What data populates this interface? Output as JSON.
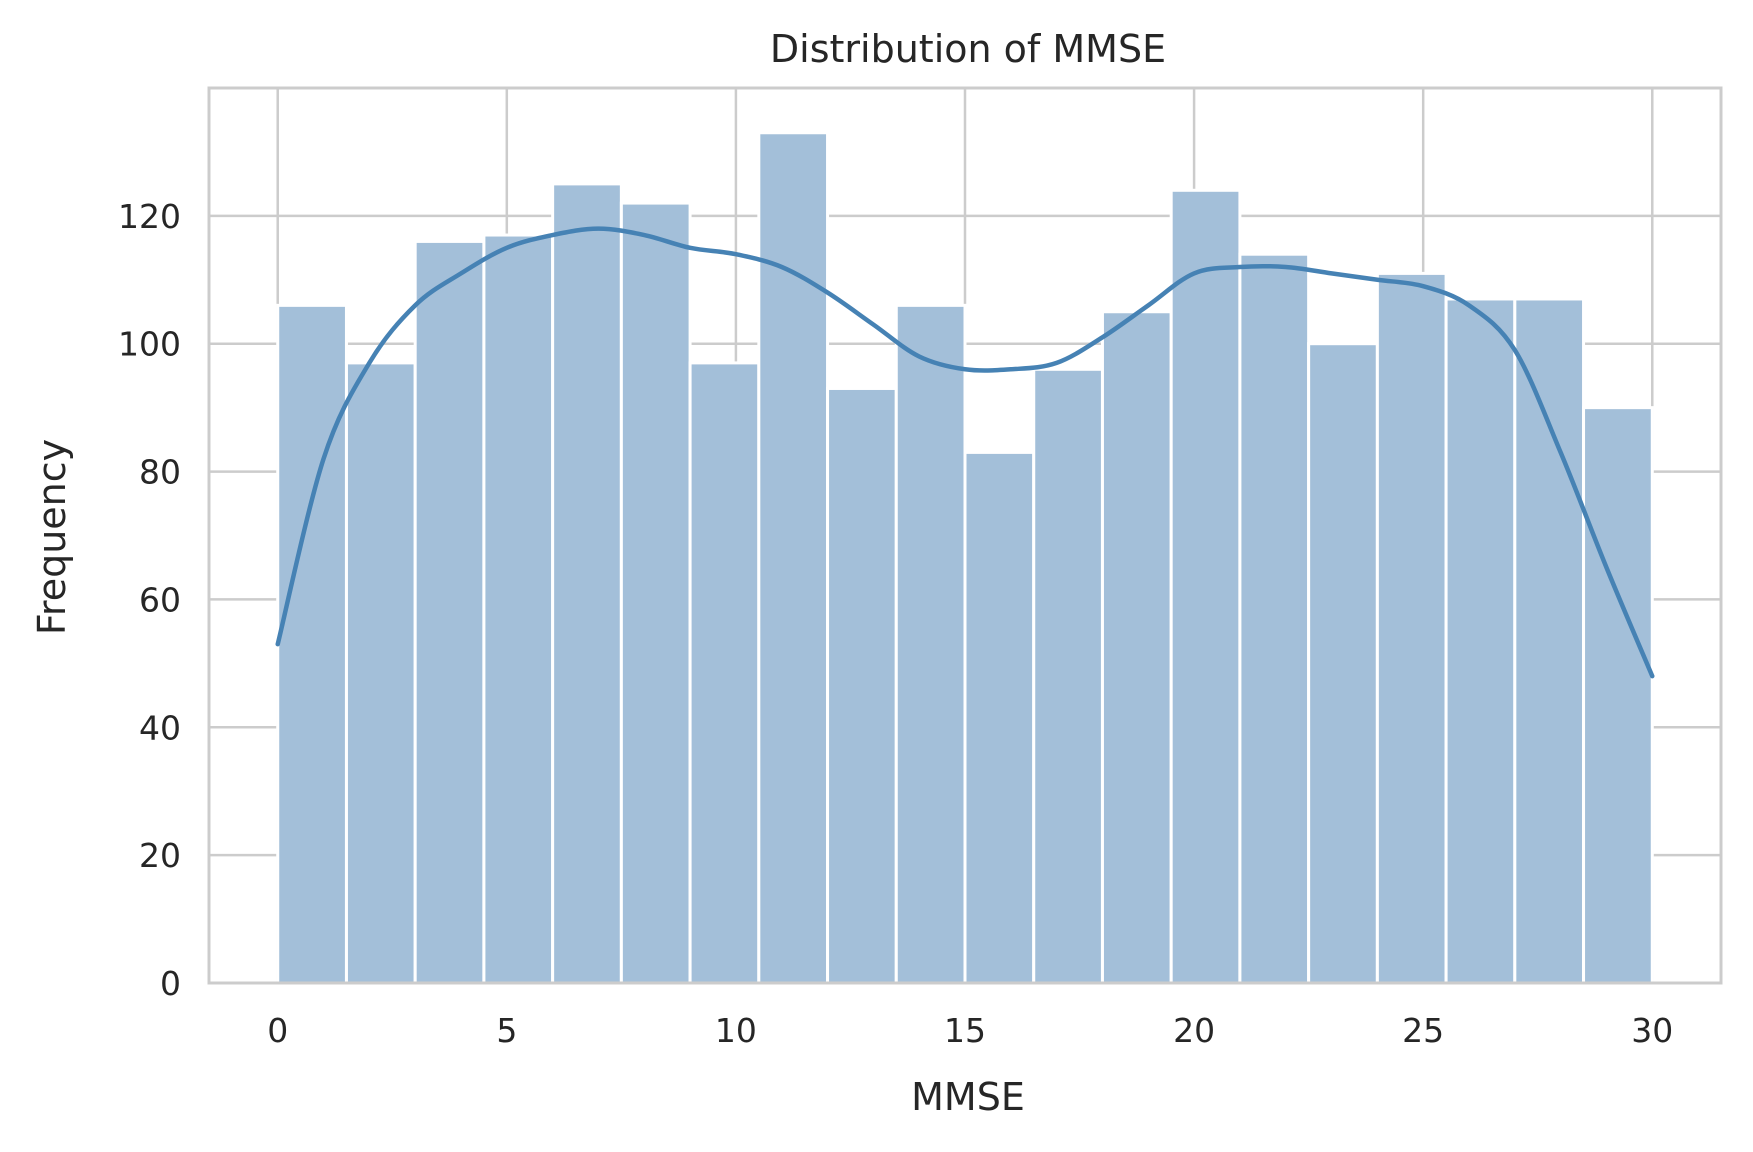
{
  "chart_data": {
    "type": "bar",
    "subtype": "histogram",
    "title": "Distribution of MMSE",
    "xlabel": "MMSE",
    "ylabel": "Frequency",
    "xlim": [
      -1.5,
      31.5
    ],
    "ylim": [
      0,
      140
    ],
    "xticks": [
      0,
      5,
      10,
      15,
      20,
      25,
      30
    ],
    "yticks": [
      0,
      20,
      40,
      60,
      80,
      100,
      120
    ],
    "grid": true,
    "bin_edges": [
      0,
      1.5,
      3,
      4.5,
      6,
      7.5,
      9,
      10.5,
      12,
      13.5,
      15,
      16.5,
      18,
      19.5,
      21,
      22.5,
      24,
      25.5,
      27,
      28.5,
      30
    ],
    "counts": [
      106,
      97,
      116,
      117,
      125,
      122,
      97,
      133,
      93,
      106,
      83,
      96,
      105,
      124,
      114,
      100,
      111,
      107,
      107,
      90
    ],
    "kde": {
      "x": [
        0,
        1,
        2,
        3,
        4,
        5,
        6,
        7,
        8,
        9,
        10,
        11,
        12,
        13,
        14,
        15,
        16,
        17,
        18,
        19,
        20,
        21,
        22,
        23,
        24,
        25,
        26,
        27,
        28,
        29,
        30
      ],
      "y": [
        53,
        82,
        97,
        106,
        111,
        115,
        117,
        118,
        117,
        115,
        114,
        112,
        108,
        103,
        98,
        96,
        96,
        97,
        101,
        106,
        111,
        112,
        112,
        111,
        110,
        109,
        106,
        99,
        83,
        65,
        48
      ]
    },
    "colors": {
      "bar": "#a3bfd9",
      "kde": "#4682b4"
    }
  }
}
